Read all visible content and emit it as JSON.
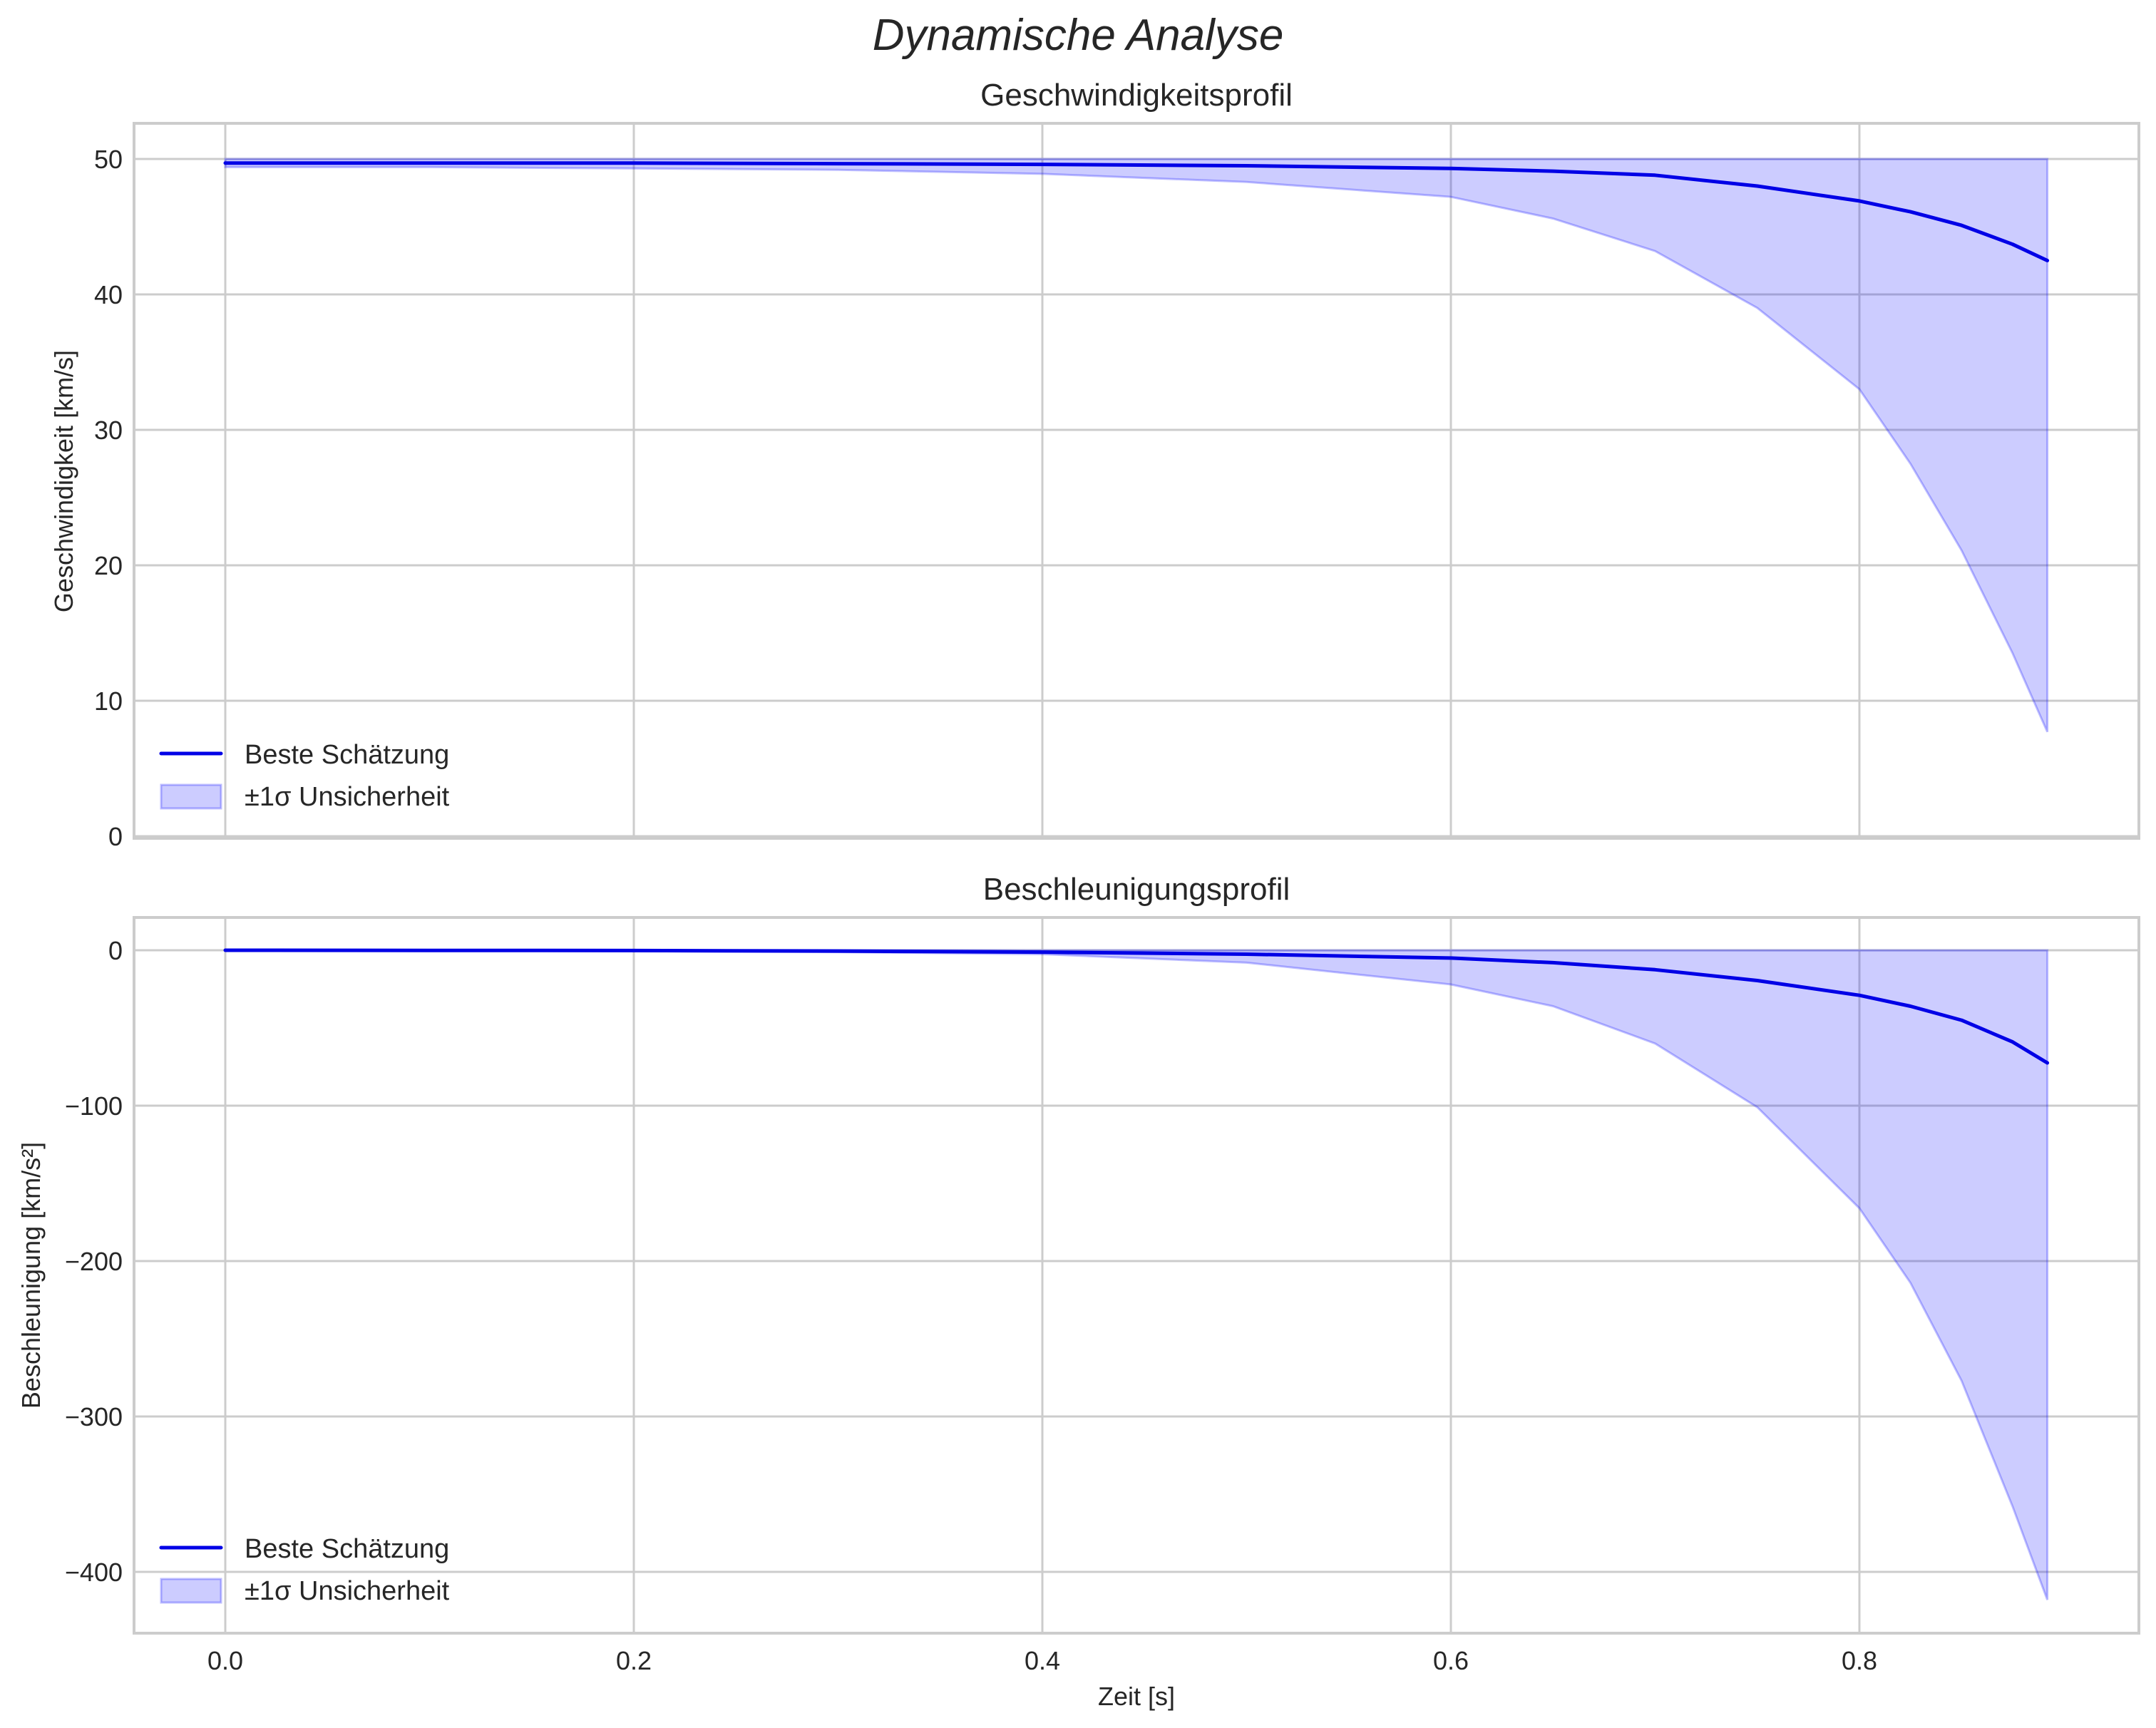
{
  "figure": {
    "suptitle": "Dynamische Analyse",
    "colors": {
      "line": "#0000e6",
      "band_fill": "#0000ff",
      "band_alpha": 0.2,
      "grid": "#cccccc",
      "text": "#262626"
    }
  },
  "chart_data": [
    {
      "type": "line",
      "title": "Geschwindigkeitsprofil",
      "xlabel": "",
      "ylabel": "Geschwindigkeit [km/s]",
      "xlim": [
        -0.045,
        0.937
      ],
      "ylim": [
        -0.3,
        52.6
      ],
      "xticks": [
        "0.0",
        "0.2",
        "0.4",
        "0.6",
        "0.8"
      ],
      "xtick_values": [
        0.0,
        0.2,
        0.4,
        0.6,
        0.8
      ],
      "yticks": [
        "0",
        "10",
        "20",
        "30",
        "40",
        "50"
      ],
      "ytick_values": [
        0,
        10,
        20,
        30,
        40,
        50
      ],
      "grid": true,
      "legend_position": "lower left",
      "legend": [
        "Beste Schätzung",
        "±1σ Unsicherheit"
      ],
      "x": [
        0.0,
        0.1,
        0.2,
        0.3,
        0.4,
        0.5,
        0.6,
        0.65,
        0.7,
        0.75,
        0.8,
        0.825,
        0.85,
        0.875,
        0.892
      ],
      "series": [
        {
          "name": "Beste Schätzung",
          "values": [
            49.7,
            49.7,
            49.7,
            49.65,
            49.6,
            49.5,
            49.3,
            49.1,
            48.8,
            48.0,
            46.9,
            46.1,
            45.1,
            43.7,
            42.5
          ]
        },
        {
          "name": "±1σ Unsicherheit (oben)",
          "values": [
            50.0,
            50.0,
            50.0,
            50.0,
            50.0,
            50.0,
            50.0,
            50.0,
            50.0,
            50.0,
            50.0,
            50.0,
            50.0,
            50.0,
            50.0
          ]
        },
        {
          "name": "±1σ Unsicherheit (unten)",
          "values": [
            49.4,
            49.4,
            49.3,
            49.2,
            48.9,
            48.3,
            47.2,
            45.6,
            43.2,
            39.0,
            33.0,
            27.5,
            21.1,
            13.5,
            7.7
          ]
        }
      ]
    },
    {
      "type": "line",
      "title": "Beschleunigungsprofil",
      "xlabel": "Zeit [s]",
      "ylabel": "Beschleunigung [km/s²]",
      "xlim": [
        -0.045,
        0.937
      ],
      "ylim": [
        -439,
        21
      ],
      "xticks": [
        "0.0",
        "0.2",
        "0.4",
        "0.6",
        "0.8"
      ],
      "xtick_values": [
        0.0,
        0.2,
        0.4,
        0.6,
        0.8
      ],
      "yticks": [
        "0",
        "−100",
        "−200",
        "−300",
        "−400"
      ],
      "ytick_values": [
        0,
        -100,
        -200,
        -300,
        -400
      ],
      "grid": true,
      "legend_position": "lower left",
      "legend": [
        "Beste Schätzung",
        "±1σ Unsicherheit"
      ],
      "x": [
        0.0,
        0.1,
        0.2,
        0.3,
        0.4,
        0.5,
        0.6,
        0.65,
        0.7,
        0.75,
        0.8,
        0.825,
        0.85,
        0.875,
        0.892
      ],
      "series": [
        {
          "name": "Beste Schätzung",
          "values": [
            0,
            -0.1,
            -0.2,
            -0.5,
            -1.2,
            -2.5,
            -5.0,
            -8.0,
            -12.5,
            -19.5,
            -29.0,
            -36.0,
            -45.0,
            -59.0,
            -72.5
          ]
        },
        {
          "name": "±1σ Unsicherheit (oben)",
          "values": [
            0,
            0,
            0,
            0,
            0,
            0,
            0,
            0,
            0,
            0,
            0,
            0,
            0,
            0,
            0
          ]
        },
        {
          "name": "±1σ Unsicherheit (unten)",
          "values": [
            0,
            -0.3,
            -0.6,
            -1.2,
            -2.5,
            -8.0,
            -22.0,
            -36.0,
            -60.0,
            -101.0,
            -166.0,
            -214.0,
            -277.0,
            -358.0,
            -418.0
          ]
        }
      ]
    }
  ]
}
